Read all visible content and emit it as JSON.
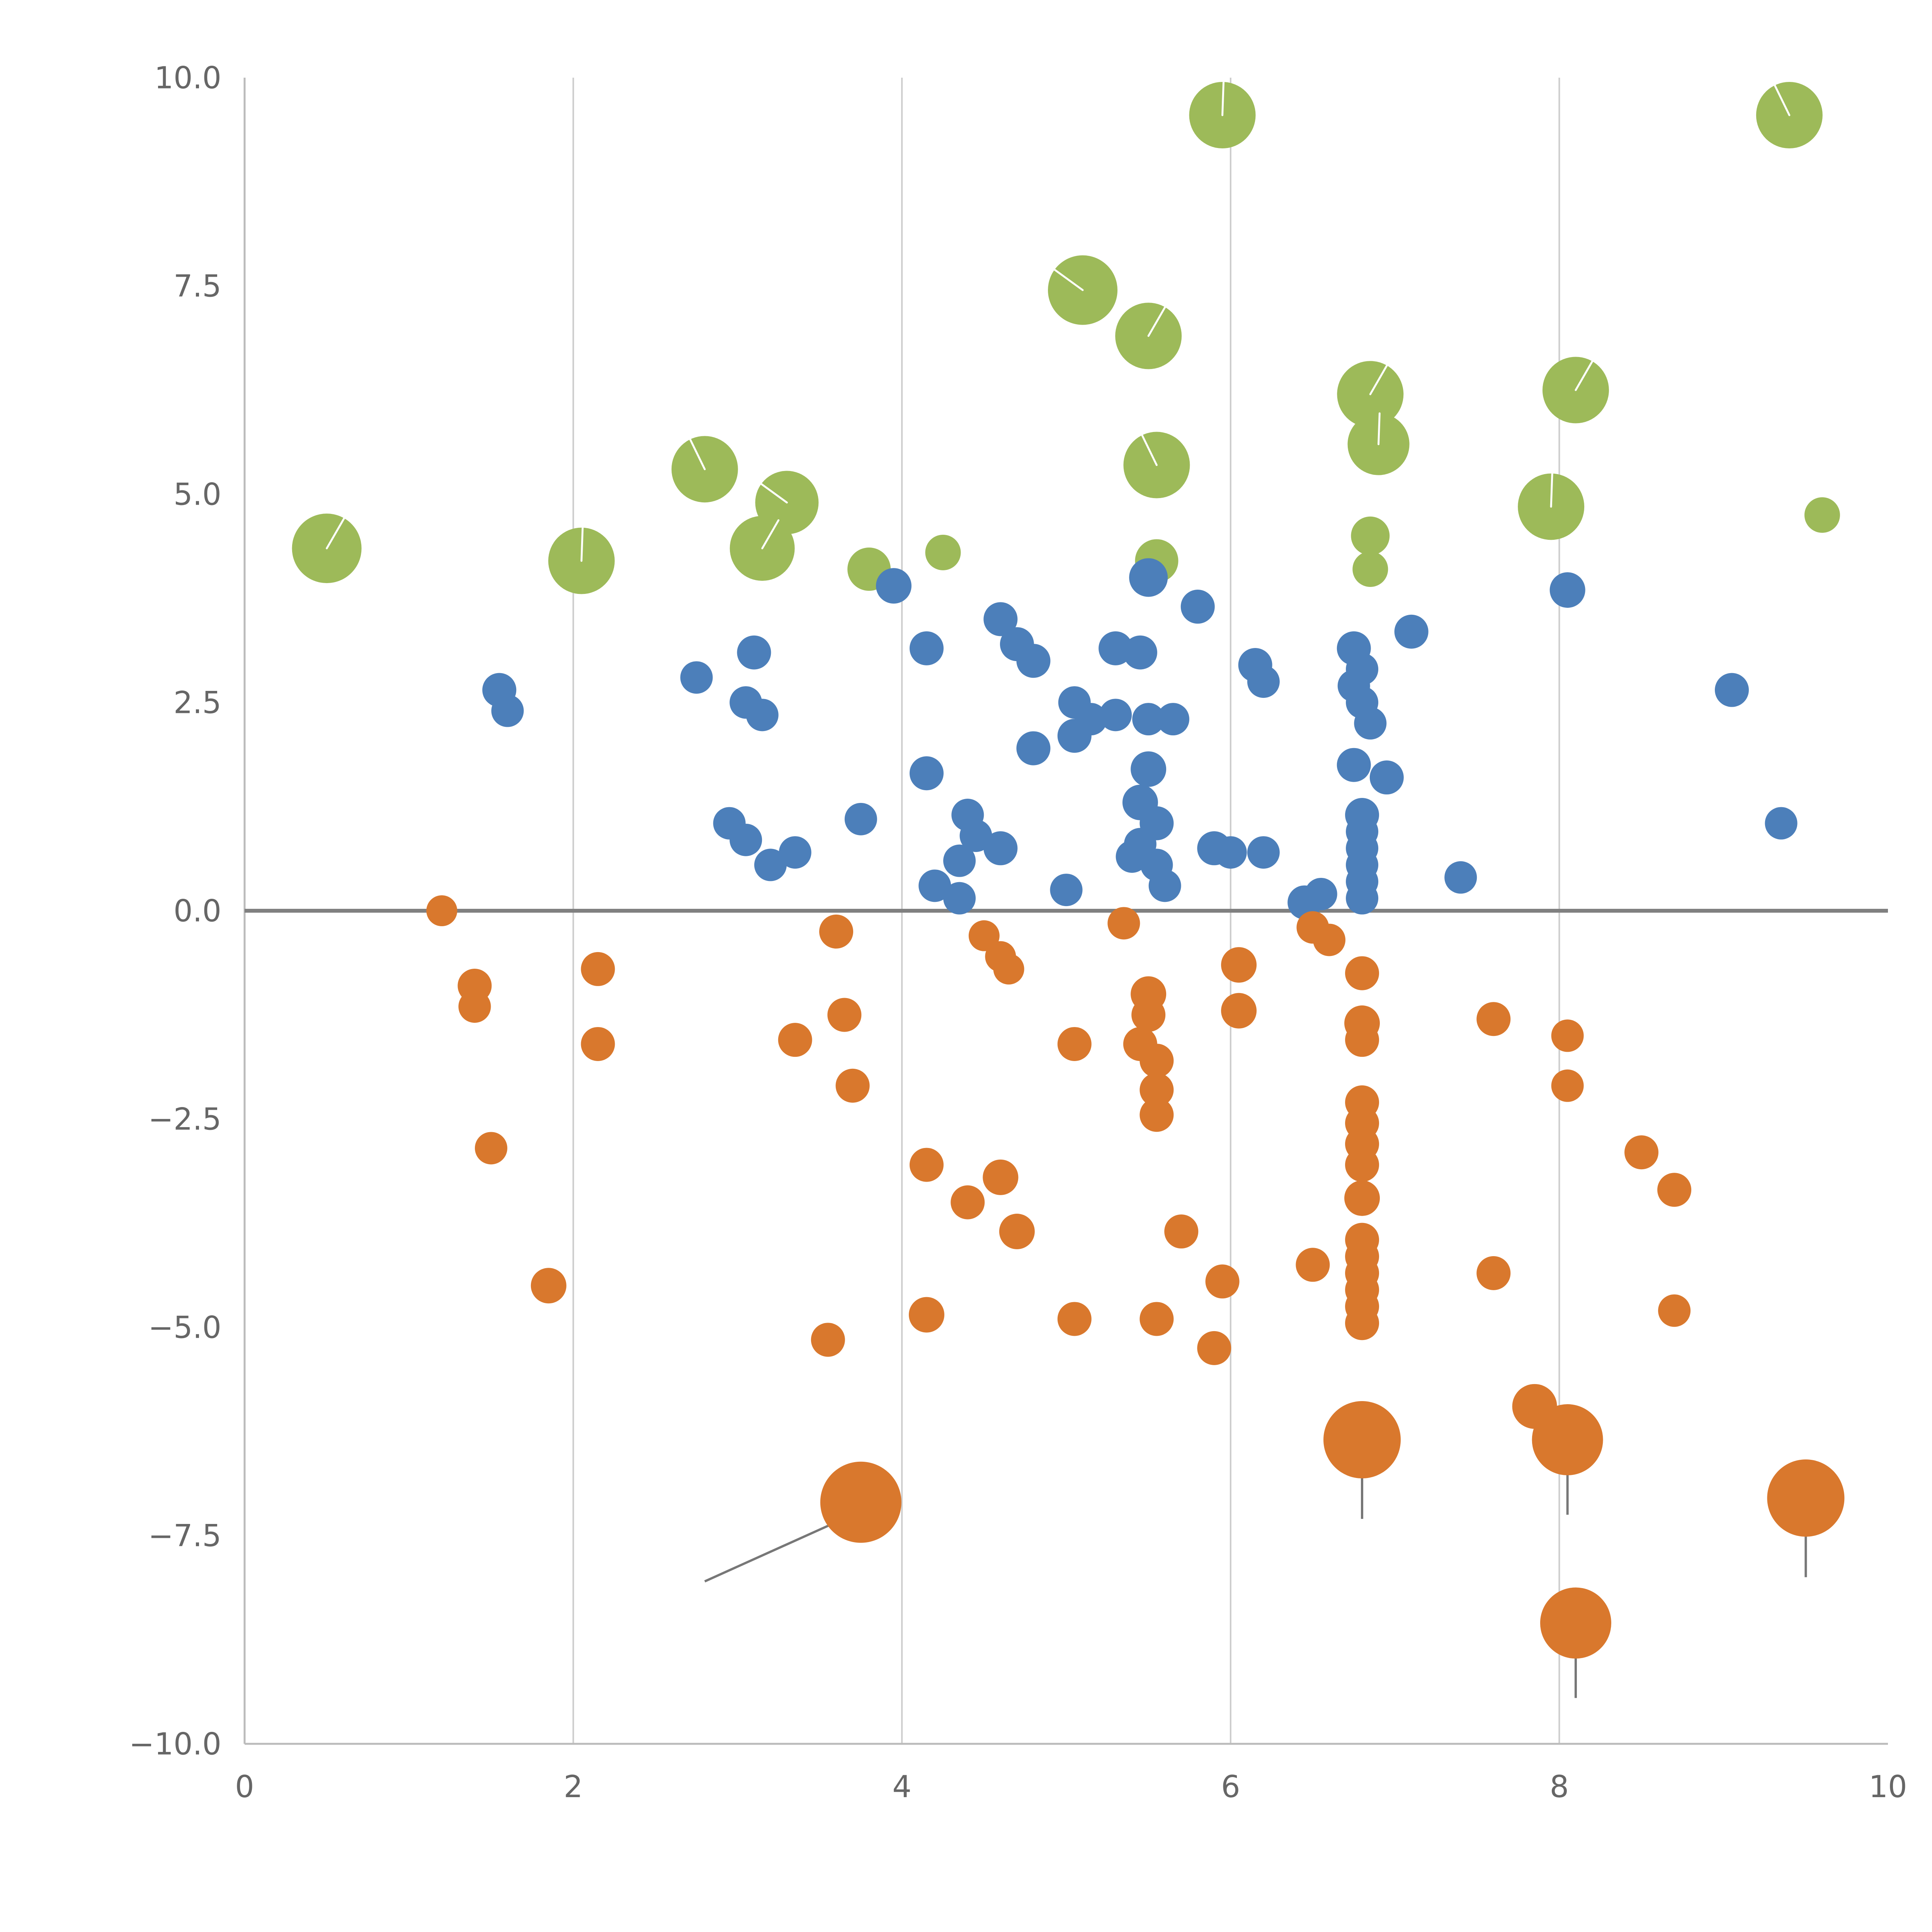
{
  "chart_data": {
    "type": "scatter",
    "title": "",
    "xlabel": "",
    "ylabel": "",
    "xlim": [
      0,
      10
    ],
    "ylim": [
      -10,
      10
    ],
    "grid": {
      "vertical_at": [
        2,
        4,
        6,
        8
      ],
      "horizontal": false,
      "zero_line_y": 0
    },
    "legend": "none",
    "x_ticks": {
      "values": [
        0,
        2,
        4,
        6,
        8,
        10
      ],
      "labels": [
        "0",
        "2",
        "4",
        "6",
        "8",
        "10"
      ]
    },
    "y_ticks": {
      "values": [
        10,
        7.5,
        5,
        2.5,
        0,
        -2.5,
        -5,
        -7.5,
        -10
      ],
      "labels": [
        "10.0",
        "7.5",
        "5.0",
        "2.5",
        "0.0",
        "−2.5",
        "−5.0",
        "−7.5",
        "−10.0"
      ]
    },
    "colors": {
      "green": "#9dba59",
      "blue": "#4c7fba",
      "orange": "#d9782d",
      "grid": "#cccccc",
      "zero_line": "#808080",
      "axis": "#bbbbbb",
      "tick_text": "#666666",
      "error_line": "#777777"
    },
    "series": [
      {
        "name": "green",
        "color": "#9dba59",
        "points": [
          [
            0.5,
            4.35,
            90
          ],
          [
            2.05,
            4.2,
            86
          ],
          [
            2.8,
            5.3,
            86
          ],
          [
            3.3,
            4.9,
            82
          ],
          [
            3.15,
            4.35,
            84
          ],
          [
            3.8,
            4.1,
            56
          ],
          [
            4.25,
            4.3,
            46
          ],
          [
            5.1,
            7.45,
            90
          ],
          [
            5.5,
            6.9,
            86
          ],
          [
            5.95,
            9.55,
            86
          ],
          [
            5.55,
            5.35,
            86
          ],
          [
            5.55,
            4.2,
            56
          ],
          [
            6.85,
            6.2,
            86
          ],
          [
            6.9,
            5.6,
            80
          ],
          [
            6.85,
            4.5,
            50
          ],
          [
            6.85,
            4.1,
            46
          ],
          [
            8.1,
            6.25,
            86
          ],
          [
            7.95,
            4.85,
            86
          ],
          [
            9.4,
            9.55,
            86
          ],
          [
            9.6,
            4.75,
            46
          ]
        ]
      },
      {
        "name": "blue",
        "color": "#4c7fba",
        "points": [
          [
            1.55,
            2.65,
            44
          ],
          [
            1.6,
            2.4,
            42
          ],
          [
            2.75,
            2.8,
            42
          ],
          [
            3.1,
            3.1,
            44
          ],
          [
            3.05,
            2.5,
            42
          ],
          [
            3.15,
            2.35,
            42
          ],
          [
            2.95,
            1.05,
            42
          ],
          [
            3.05,
            0.85,
            42
          ],
          [
            3.2,
            0.55,
            42
          ],
          [
            3.35,
            0.7,
            42
          ],
          [
            3.75,
            1.1,
            42
          ],
          [
            3.95,
            3.9,
            46
          ],
          [
            4.15,
            3.15,
            44
          ],
          [
            4.15,
            1.65,
            44
          ],
          [
            4.2,
            0.3,
            42
          ],
          [
            4.35,
            0.15,
            42
          ],
          [
            4.4,
            1.15,
            42
          ],
          [
            4.45,
            0.9,
            42
          ],
          [
            4.35,
            0.6,
            42
          ],
          [
            4.6,
            3.5,
            44
          ],
          [
            4.7,
            3.2,
            44
          ],
          [
            4.8,
            3.0,
            44
          ],
          [
            4.6,
            0.75,
            44
          ],
          [
            4.8,
            1.95,
            44
          ],
          [
            5.05,
            2.1,
            44
          ],
          [
            5.0,
            0.25,
            42
          ],
          [
            5.05,
            2.5,
            42
          ],
          [
            5.15,
            2.3,
            42
          ],
          [
            5.3,
            3.15,
            44
          ],
          [
            5.45,
            3.1,
            44
          ],
          [
            5.3,
            2.35,
            42
          ],
          [
            5.5,
            2.3,
            42
          ],
          [
            5.65,
            2.3,
            42
          ],
          [
            5.5,
            4.0,
            50
          ],
          [
            5.8,
            3.65,
            44
          ],
          [
            5.5,
            1.7,
            46
          ],
          [
            5.45,
            1.3,
            46
          ],
          [
            5.55,
            1.05,
            44
          ],
          [
            5.45,
            0.8,
            42
          ],
          [
            5.55,
            0.55,
            42
          ],
          [
            5.4,
            0.65,
            42
          ],
          [
            5.6,
            0.3,
            42
          ],
          [
            5.9,
            0.75,
            44
          ],
          [
            6.0,
            0.7,
            42
          ],
          [
            6.15,
            2.95,
            44
          ],
          [
            6.2,
            2.75,
            42
          ],
          [
            6.2,
            0.7,
            42
          ],
          [
            6.45,
            0.1,
            44
          ],
          [
            6.55,
            0.2,
            42
          ],
          [
            6.75,
            3.15,
            44
          ],
          [
            6.8,
            2.9,
            42
          ],
          [
            6.75,
            2.7,
            42
          ],
          [
            6.8,
            2.5,
            42
          ],
          [
            6.85,
            2.25,
            42
          ],
          [
            6.75,
            1.75,
            44
          ],
          [
            6.95,
            1.6,
            44
          ],
          [
            6.8,
            1.15,
            44
          ],
          [
            6.8,
            0.95,
            42
          ],
          [
            6.8,
            0.75,
            42
          ],
          [
            6.8,
            0.55,
            42
          ],
          [
            6.8,
            0.35,
            42
          ],
          [
            6.8,
            0.15,
            42
          ],
          [
            7.1,
            3.35,
            44
          ],
          [
            7.4,
            0.4,
            42
          ],
          [
            8.05,
            3.85,
            46
          ],
          [
            9.05,
            2.65,
            44
          ],
          [
            9.35,
            1.05,
            42
          ]
        ]
      },
      {
        "name": "orange",
        "color": "#d9782d",
        "points": [
          [
            1.2,
            0.0,
            40
          ],
          [
            1.4,
            -0.9,
            44
          ],
          [
            1.4,
            -1.15,
            42
          ],
          [
            1.5,
            -2.85,
            42
          ],
          [
            1.85,
            -4.5,
            46
          ],
          [
            2.15,
            -0.7,
            44
          ],
          [
            2.15,
            -1.6,
            44
          ],
          [
            3.35,
            -1.55,
            44
          ],
          [
            3.6,
            -0.25,
            44
          ],
          [
            3.65,
            -1.25,
            44
          ],
          [
            3.7,
            -2.1,
            44
          ],
          [
            3.55,
            -5.15,
            44
          ],
          [
            4.15,
            -3.05,
            44
          ],
          [
            4.15,
            -4.85,
            46
          ],
          [
            4.4,
            -3.5,
            44
          ],
          [
            4.5,
            -0.3,
            40
          ],
          [
            4.6,
            -0.55,
            40
          ],
          [
            4.65,
            -0.7,
            40
          ],
          [
            4.6,
            -3.2,
            46
          ],
          [
            4.7,
            -3.85,
            46
          ],
          [
            5.05,
            -1.6,
            44
          ],
          [
            5.05,
            -4.9,
            44
          ],
          [
            5.35,
            -0.15,
            42
          ],
          [
            5.45,
            -1.6,
            44
          ],
          [
            5.55,
            -1.8,
            44
          ],
          [
            5.5,
            -1.0,
            46
          ],
          [
            5.5,
            -1.25,
            44
          ],
          [
            5.55,
            -2.15,
            44
          ],
          [
            5.55,
            -2.45,
            44
          ],
          [
            5.55,
            -4.9,
            44
          ],
          [
            5.7,
            -3.85,
            44
          ],
          [
            5.95,
            -4.45,
            44
          ],
          [
            5.9,
            -5.25,
            44
          ],
          [
            6.05,
            -0.65,
            46
          ],
          [
            6.05,
            -1.2,
            46
          ],
          [
            6.5,
            -0.2,
            42
          ],
          [
            6.6,
            -0.35,
            42
          ],
          [
            6.5,
            -4.25,
            44
          ],
          [
            6.8,
            -0.75,
            44
          ],
          [
            6.8,
            -1.35,
            46
          ],
          [
            6.8,
            -1.55,
            44
          ],
          [
            6.8,
            -2.3,
            44
          ],
          [
            6.8,
            -2.55,
            44
          ],
          [
            6.8,
            -2.8,
            44
          ],
          [
            6.8,
            -3.05,
            44
          ],
          [
            6.8,
            -3.45,
            46
          ],
          [
            6.8,
            -3.95,
            44
          ],
          [
            6.8,
            -4.15,
            44
          ],
          [
            6.8,
            -4.35,
            44
          ],
          [
            6.8,
            -4.55,
            44
          ],
          [
            6.8,
            -4.75,
            44
          ],
          [
            6.8,
            -4.95,
            44
          ],
          [
            6.8,
            -6.35,
            100
          ],
          [
            7.6,
            -1.3,
            44
          ],
          [
            7.6,
            -4.35,
            44
          ],
          [
            7.85,
            -5.95,
            58
          ],
          [
            8.05,
            -1.5,
            42
          ],
          [
            8.05,
            -2.1,
            42
          ],
          [
            8.05,
            -6.35,
            92
          ],
          [
            8.1,
            -8.55,
            92
          ],
          [
            8.5,
            -2.9,
            44
          ],
          [
            8.7,
            -3.35,
            44
          ],
          [
            8.7,
            -4.8,
            42
          ],
          [
            9.5,
            -7.05,
            100
          ],
          [
            3.75,
            -7.1,
            105
          ]
        ]
      }
    ],
    "error_lines": [
      [
        6.8,
        -6.35,
        6.8,
        -7.3
      ],
      [
        8.05,
        -6.35,
        8.05,
        -7.25
      ],
      [
        8.1,
        -8.55,
        8.1,
        -9.45
      ],
      [
        9.5,
        -7.05,
        9.5,
        -8.0
      ],
      [
        3.7,
        -7.25,
        2.8,
        -8.05
      ]
    ]
  }
}
